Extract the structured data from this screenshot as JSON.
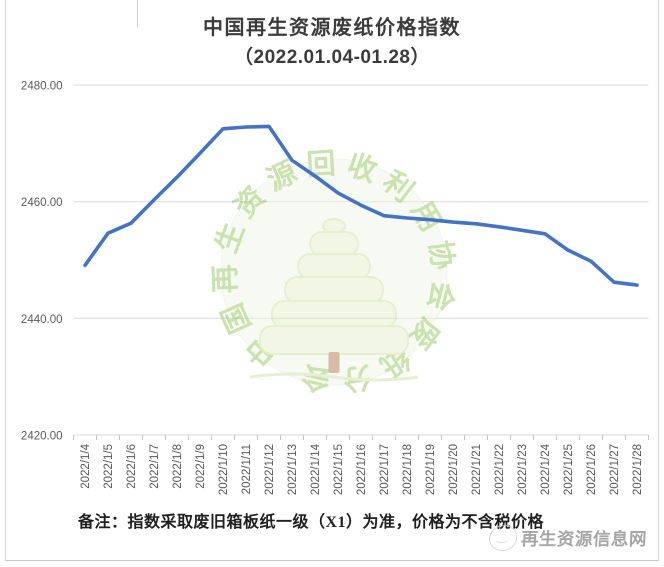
{
  "chart_data": {
    "type": "line",
    "title": "中国再生资源废纸价格指数",
    "subtitle": "（2022.01.04-01.28）",
    "series_name": "废纸价格指数",
    "x": [
      "2022/1/4",
      "2022/1/5",
      "2022/1/6",
      "2022/1/7",
      "2022/1/8",
      "2022/1/9",
      "2022/1/10",
      "2022/1/11",
      "2022/1/12",
      "2022/1/13",
      "2022/1/14",
      "2022/1/15",
      "2022/1/16",
      "2022/1/17",
      "2022/1/18",
      "2022/1/19",
      "2022/1/20",
      "2022/1/21",
      "2022/1/22",
      "2022/1/23",
      "2022/1/24",
      "2022/1/25",
      "2022/1/26",
      "2022/1/27",
      "2022/1/28"
    ],
    "values": [
      2449.1,
      2454.6,
      2456.3,
      2460.3,
      2464.2,
      2468.3,
      2472.5,
      2472.8,
      2472.9,
      2467.1,
      2464.4,
      2461.5,
      2459.4,
      2457.6,
      2457.2,
      2456.9,
      2456.5,
      2456.2,
      2455.7,
      2455.1,
      2454.5,
      2451.7,
      2449.8,
      2446.2,
      2445.7
    ],
    "xlabel": "",
    "ylabel": "",
    "ylim": [
      2420,
      2480
    ],
    "ytick_step": 20,
    "ytick_labels": [
      "2480.00",
      "2460.00",
      "2440.00",
      "2420.00"
    ],
    "grid": true,
    "legend": "none",
    "line_color": "#4472c4",
    "grid_color": "#d9d9d9",
    "tick_color": "#c6c6c6",
    "label_color": "#595959"
  },
  "watermark": {
    "ring_text": "中国再生资源回收利用协会废纸分会",
    "ring_color": "#8cc04f",
    "circle_fill": "#eef6e3",
    "circle_stroke": "#dcead0",
    "tree_fill": "#e3eec6",
    "tree_stroke": "#c9dd9b",
    "trunk_color": "#a8693a"
  },
  "note": {
    "text": "备注：指数采取废旧箱板纸一级（X1）为准，价格为不含税价格"
  },
  "footer_watermark": {
    "site": "再生资源信息网"
  }
}
